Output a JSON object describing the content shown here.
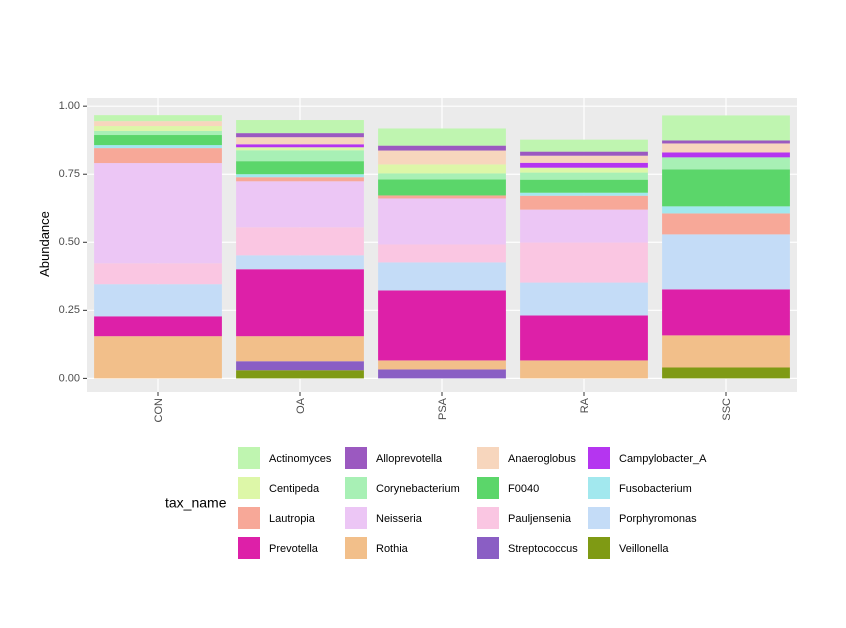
{
  "chart_data": {
    "type": "stacked_bar",
    "y_label": "Abundance",
    "legend_title": "tax_name",
    "categories": [
      "CON",
      "OA",
      "PSA",
      "RA",
      "SSC"
    ],
    "ylim": [
      -0.05,
      1.03
    ],
    "yticks": [
      {
        "value": 0,
        "label": "0.00"
      },
      0.25,
      {
        "value": 0.5,
        "label": "0.50"
      },
      0.75,
      {
        "value": 1,
        "label": "1.00"
      }
    ],
    "grid": true,
    "series": [
      {
        "name": "Actinomyces",
        "color": "#bff5b0",
        "values": [
          0.022,
          0.048,
          0.063,
          0.044,
          0.092
        ]
      },
      {
        "name": "Alloprevotella",
        "color": "#9b59c0",
        "values": [
          0,
          0.015,
          0.018,
          0.015,
          0.011
        ]
      },
      {
        "name": "Anaeroglobus",
        "color": "#f7d6bd",
        "values": [
          0.018,
          0.026,
          0.051,
          0.026,
          0.033
        ]
      },
      {
        "name": "Campylobacter_A",
        "color": "#b535f0",
        "values": [
          0,
          0.011,
          0,
          0.018,
          0.018
        ]
      },
      {
        "name": "Centipeda",
        "color": "#ddf7a8",
        "values": [
          0.018,
          0.011,
          0.033,
          0.018,
          0
        ]
      },
      {
        "name": "Corynebacterium",
        "color": "#a8f0b5",
        "values": [
          0.015,
          0.04,
          0.022,
          0.026,
          0.044
        ]
      },
      {
        "name": "F0040",
        "color": "#5bd66a",
        "values": [
          0.037,
          0.048,
          0.059,
          0.048,
          0.136
        ]
      },
      {
        "name": "Fusobacterium",
        "color": "#a2e8ee",
        "values": [
          0.011,
          0.011,
          0,
          0.011,
          0.026
        ]
      },
      {
        "name": "Lautropia",
        "color": "#f7a898",
        "values": [
          0.055,
          0.015,
          0.011,
          0.051,
          0.077
        ]
      },
      {
        "name": "Neisseria",
        "color": "#ecc6f5",
        "values": [
          0.368,
          0.169,
          0.169,
          0.121,
          0
        ]
      },
      {
        "name": "Pauljensenia",
        "color": "#fac6e2",
        "values": [
          0.077,
          0.103,
          0.066,
          0.147,
          0
        ]
      },
      {
        "name": "Porphyromonas",
        "color": "#c4dcf7",
        "values": [
          0.118,
          0.051,
          0.103,
          0.121,
          0.202
        ]
      },
      {
        "name": "Prevotella",
        "color": "#dd20a8",
        "values": [
          0.073,
          0.246,
          0.257,
          0.165,
          0.169
        ]
      },
      {
        "name": "Rothia",
        "color": "#f2bf8a",
        "values": [
          0.155,
          0.092,
          0.033,
          0.066,
          0.118
        ]
      },
      {
        "name": "Streptococcus",
        "color": "#8a5ec4",
        "values": [
          0,
          0.033,
          0.033,
          0,
          0
        ]
      },
      {
        "name": "Veillonella",
        "color": "#7f9a14",
        "values": [
          0,
          0.03,
          0,
          0,
          0.04
        ]
      }
    ]
  }
}
